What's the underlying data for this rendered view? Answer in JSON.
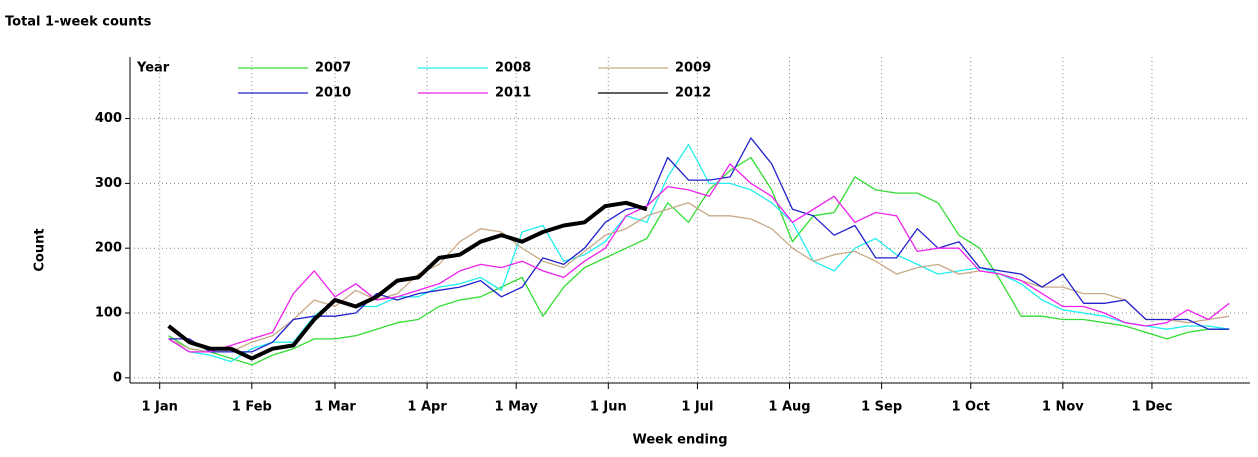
{
  "chart_data": {
    "type": "line",
    "title": "Total 1-week counts",
    "x_label": "Week ending",
    "y_label": "Count",
    "legend_title": "Year",
    "grid": true,
    "xlim": [
      -9,
      368
    ],
    "ylim": [
      -8,
      495
    ],
    "xticks": [
      {
        "value": 1,
        "label": "1 Jan"
      },
      {
        "value": 32,
        "label": "1 Feb"
      },
      {
        "value": 60,
        "label": "1 Mar"
      },
      {
        "value": 91,
        "label": "1 Apr"
      },
      {
        "value": 121,
        "label": "1 May"
      },
      {
        "value": 152,
        "label": "1 Jun"
      },
      {
        "value": 182,
        "label": "1 Jul"
      },
      {
        "value": 213,
        "label": "1 Aug"
      },
      {
        "value": 244,
        "label": "1 Sep"
      },
      {
        "value": 274,
        "label": "1 Oct"
      },
      {
        "value": 305,
        "label": "1 Nov"
      },
      {
        "value": 335,
        "label": "1 Dec"
      }
    ],
    "yticks": [
      0,
      100,
      200,
      300,
      400
    ],
    "x": [
      4,
      11,
      18,
      25,
      32,
      39,
      46,
      53,
      60,
      67,
      74,
      81,
      88,
      95,
      102,
      109,
      116,
      123,
      130,
      137,
      144,
      151,
      158,
      165,
      172,
      179,
      186,
      193,
      200,
      207,
      214,
      221,
      228,
      235,
      242,
      249,
      256,
      263,
      270,
      277,
      284,
      291,
      298,
      305,
      312,
      319,
      326,
      333,
      340,
      347,
      354,
      361
    ],
    "series": [
      {
        "name": "2007",
        "color": "#33dd33",
        "values": [
          65,
          45,
          40,
          30,
          20,
          35,
          45,
          60,
          60,
          65,
          75,
          85,
          90,
          110,
          120,
          125,
          140,
          155,
          95,
          140,
          170,
          185,
          200,
          215,
          270,
          240,
          290,
          320,
          340,
          290,
          210,
          250,
          255,
          310,
          290,
          285,
          285,
          270,
          220,
          200,
          150,
          95,
          95,
          90,
          90,
          85,
          80,
          70,
          60,
          70,
          75,
          75
        ]
      },
      {
        "name": "2008",
        "color": "#22eeee",
        "values": [
          60,
          40,
          35,
          25,
          45,
          55,
          55,
          95,
          120,
          110,
          110,
          125,
          125,
          140,
          145,
          155,
          135,
          225,
          235,
          180,
          190,
          210,
          250,
          240,
          310,
          360,
          300,
          300,
          290,
          270,
          240,
          180,
          165,
          200,
          215,
          190,
          175,
          160,
          165,
          170,
          160,
          145,
          120,
          105,
          100,
          95,
          85,
          80,
          75,
          80,
          80,
          75
        ]
      },
      {
        "name": "2009",
        "color": "#c8aa88",
        "values": [
          60,
          45,
          40,
          40,
          55,
          65,
          90,
          120,
          110,
          135,
          120,
          130,
          160,
          175,
          210,
          230,
          225,
          200,
          180,
          170,
          195,
          220,
          230,
          250,
          260,
          270,
          250,
          250,
          245,
          230,
          200,
          180,
          190,
          195,
          180,
          160,
          170,
          175,
          160,
          165,
          160,
          150,
          140,
          140,
          130,
          130,
          120,
          90,
          90,
          85,
          90,
          95
        ]
      },
      {
        "name": "2010",
        "color": "#2222cc",
        "values": [
          60,
          60,
          40,
          40,
          40,
          55,
          90,
          95,
          95,
          100,
          130,
          120,
          130,
          135,
          140,
          150,
          125,
          140,
          185,
          175,
          200,
          240,
          260,
          265,
          340,
          305,
          305,
          310,
          370,
          330,
          260,
          250,
          220,
          235,
          185,
          185,
          230,
          200,
          210,
          170,
          165,
          160,
          140,
          160,
          115,
          115,
          120,
          90,
          90,
          90,
          75,
          75
        ]
      },
      {
        "name": "2011",
        "color": "#ee22ee",
        "values": [
          60,
          40,
          40,
          50,
          60,
          70,
          130,
          165,
          125,
          145,
          120,
          125,
          135,
          145,
          165,
          175,
          170,
          180,
          165,
          155,
          180,
          200,
          250,
          265,
          295,
          290,
          280,
          330,
          300,
          280,
          240,
          260,
          280,
          240,
          255,
          250,
          195,
          200,
          200,
          165,
          160,
          150,
          130,
          110,
          110,
          100,
          85,
          80,
          85,
          105,
          90,
          115
        ]
      },
      {
        "name": "2012",
        "color": "#000000",
        "values": [
          80,
          55,
          45,
          45,
          30,
          45,
          50,
          90,
          120,
          110,
          125,
          150,
          155,
          185,
          190,
          210,
          220,
          210,
          225,
          235,
          240,
          265,
          270,
          260,
          null,
          null,
          null,
          null,
          null,
          null,
          null,
          null,
          null,
          null,
          null,
          null,
          null,
          null,
          null,
          null,
          null,
          null,
          null,
          null,
          null,
          null,
          null,
          null,
          null,
          null,
          null,
          null
        ]
      }
    ]
  }
}
